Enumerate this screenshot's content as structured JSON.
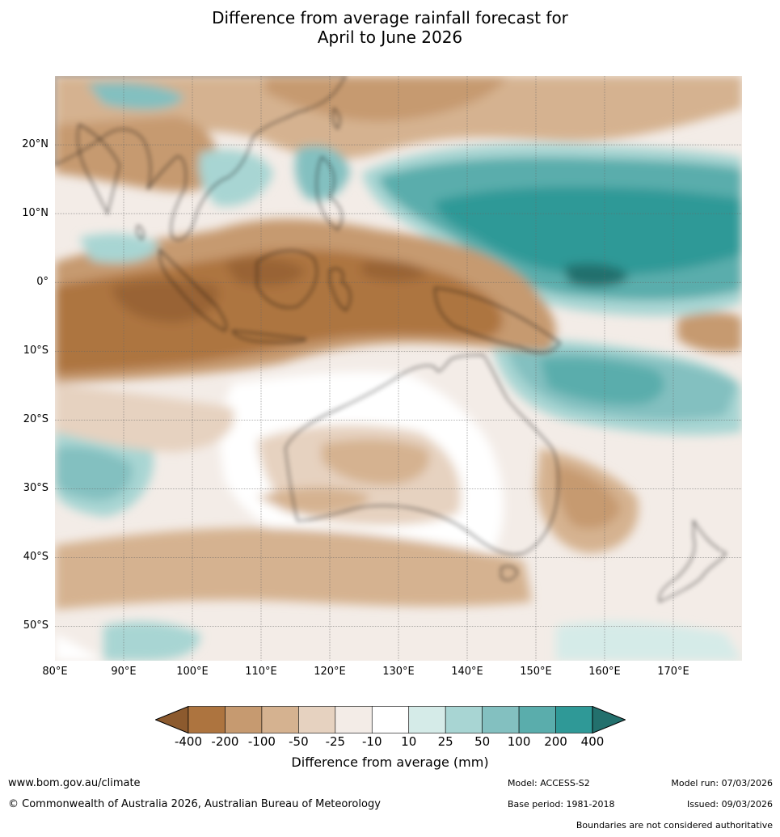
{
  "title_line1": "Difference from average rainfall forecast for",
  "title_line2": "April to June 2026",
  "lat_labels": [
    {
      "text": "20°N",
      "lat": 20
    },
    {
      "text": "10°N",
      "lat": 10
    },
    {
      "text": "0°",
      "lat": 0
    },
    {
      "text": "10°S",
      "lat": -10
    },
    {
      "text": "20°S",
      "lat": -20
    },
    {
      "text": "30°S",
      "lat": -30
    },
    {
      "text": "40°S",
      "lat": -40
    },
    {
      "text": "50°S",
      "lat": -50
    }
  ],
  "lon_labels": [
    {
      "text": "80°E",
      "lon": 80
    },
    {
      "text": "90°E",
      "lon": 90
    },
    {
      "text": "100°E",
      "lon": 100
    },
    {
      "text": "110°E",
      "lon": 110
    },
    {
      "text": "120°E",
      "lon": 120
    },
    {
      "text": "130°E",
      "lon": 130
    },
    {
      "text": "140°E",
      "lon": 140
    },
    {
      "text": "150°E",
      "lon": 150
    },
    {
      "text": "160°E",
      "lon": 160
    },
    {
      "text": "170°E",
      "lon": 170
    }
  ],
  "map_extent": {
    "lon_min": 80,
    "lon_max": 180,
    "lat_min": -55,
    "lat_max": 30
  },
  "colorbar": {
    "ticks": [
      "-400",
      "-200",
      "-100",
      "-50",
      "-25",
      "-10",
      "10",
      "25",
      "50",
      "100",
      "200",
      "400"
    ],
    "colors": [
      "#8c5a2e",
      "#ad743f",
      "#c69a70",
      "#d5b290",
      "#e6d2c0",
      "#f3ece7",
      "#ffffff",
      "#d5ebe8",
      "#a8d5d3",
      "#83c0c0",
      "#5aadac",
      "#2f9997",
      "#23706d"
    ],
    "label": "Difference from average (mm)"
  },
  "footer": {
    "url": "www.bom.gov.au/climate",
    "copyright": "© Commonwealth of Australia 2026, Australian Bureau of Meteorology",
    "model": "Model: ACCESS-S2",
    "base_period": "Base period: 1981-2018",
    "model_run": "Model run: 07/03/2026",
    "issued": "Issued: 09/03/2026",
    "disclaimer": "Boundaries are not considered authoritative"
  }
}
